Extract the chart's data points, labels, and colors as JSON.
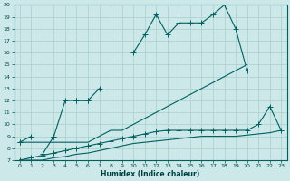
{
  "xlabel": "Humidex (Indice chaleur)",
  "x": [
    0,
    1,
    2,
    3,
    4,
    5,
    6,
    7,
    8,
    9,
    10,
    11,
    12,
    13,
    14,
    15,
    16,
    17,
    18,
    19,
    20,
    21,
    22,
    23
  ],
  "line_top": [
    8.5,
    9.0,
    null,
    9.0,
    null,
    12.0,
    12.0,
    13.0,
    null,
    null,
    16.0,
    17.5,
    19.2,
    17.5,
    18.5,
    18.5,
    18.5,
    19.2,
    20.0,
    18.0,
    14.5,
    null,
    null,
    null
  ],
  "line_mid": [
    8.5,
    null,
    7.5,
    9.0,
    12.0,
    12.0,
    12.0,
    null,
    null,
    null,
    null,
    null,
    null,
    null,
    null,
    null,
    null,
    null,
    null,
    null,
    null,
    null,
    null,
    null
  ],
  "line_diag": [
    8.5,
    8.5,
    8.5,
    8.5,
    8.5,
    8.5,
    8.5,
    9.0,
    9.5,
    9.5,
    10.0,
    10.5,
    11.0,
    11.5,
    12.0,
    12.5,
    13.0,
    13.5,
    14.0,
    14.5,
    15.0,
    null,
    null,
    null
  ],
  "line_flat": [
    7.0,
    7.2,
    7.4,
    7.6,
    7.8,
    8.0,
    8.2,
    8.4,
    8.6,
    8.8,
    9.0,
    9.2,
    9.4,
    9.5,
    9.5,
    9.5,
    9.5,
    9.5,
    9.5,
    9.5,
    9.5,
    10.0,
    11.5,
    9.5
  ],
  "line_flat2": [
    7.0,
    7.0,
    7.0,
    7.2,
    7.3,
    7.5,
    7.6,
    7.8,
    8.0,
    8.2,
    8.4,
    8.5,
    8.6,
    8.7,
    8.8,
    8.9,
    9.0,
    9.0,
    9.0,
    9.0,
    9.1,
    9.2,
    9.3,
    9.5
  ],
  "color": "#006060",
  "bg_color": "#cce8e8",
  "grid_color": "#aacece",
  "ylim": [
    7,
    20
  ],
  "xlim": [
    -0.5,
    23.5
  ],
  "yticks": [
    7,
    8,
    9,
    10,
    11,
    12,
    13,
    14,
    15,
    16,
    17,
    18,
    19,
    20
  ],
  "xticks": [
    0,
    1,
    2,
    3,
    4,
    5,
    6,
    7,
    8,
    9,
    10,
    11,
    12,
    13,
    14,
    15,
    16,
    17,
    18,
    19,
    20,
    21,
    22,
    23
  ]
}
